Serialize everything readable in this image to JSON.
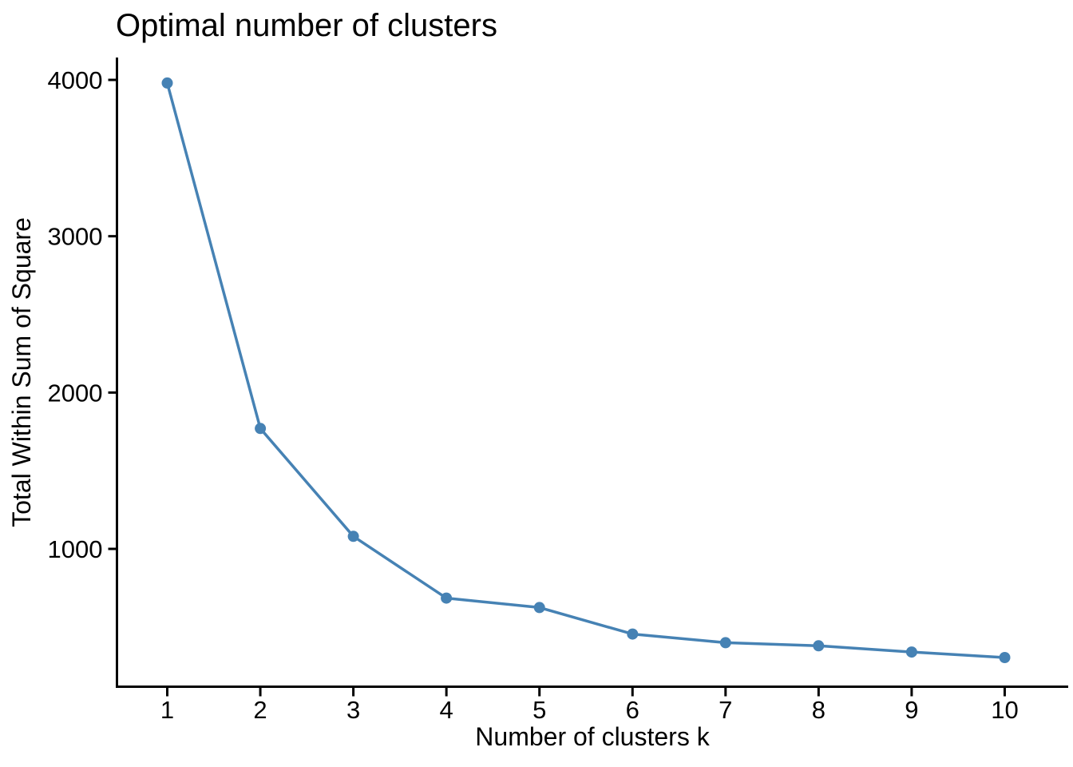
{
  "chart_data": {
    "type": "line",
    "title": "Optimal number of clusters",
    "xlabel": "Number of clusters k",
    "ylabel": "Total Within Sum of Square",
    "x": [
      1,
      2,
      3,
      4,
      5,
      6,
      7,
      8,
      9,
      10
    ],
    "values": [
      3980,
      1770,
      1080,
      685,
      625,
      455,
      400,
      380,
      340,
      305
    ],
    "series": [
      {
        "name": "Total within sum of square",
        "values": [
          3980,
          1770,
          1080,
          685,
          625,
          455,
          400,
          380,
          340,
          305
        ]
      }
    ],
    "x_tick_labels": [
      "1",
      "2",
      "3",
      "4",
      "5",
      "6",
      "7",
      "8",
      "9",
      "10"
    ],
    "y_tick_values": [
      1000,
      2000,
      3000,
      4000
    ],
    "y_tick_labels": [
      "1000",
      "2000",
      "3000",
      "4000"
    ],
    "xlim": [
      0.5,
      10.5
    ],
    "ylim": [
      120,
      4140
    ],
    "grid": false,
    "legend_position": "none",
    "marker": "filled-circle",
    "series_color": "#4682B4",
    "axis_color": "#000000",
    "text_color": "#000000",
    "background_color": "#FFFFFF"
  }
}
